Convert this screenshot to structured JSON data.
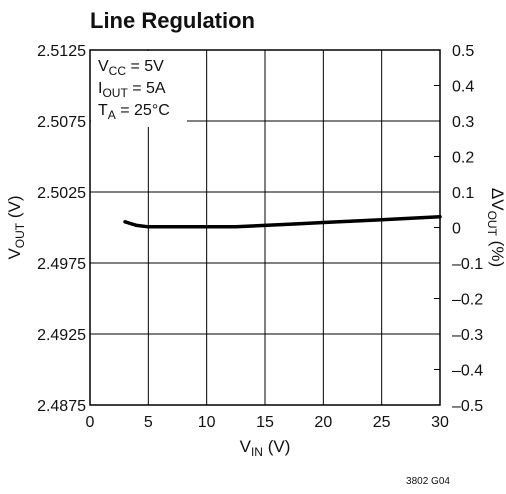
{
  "chart_data": {
    "type": "line",
    "title": "Line Regulation",
    "xlabel": {
      "main": "V",
      "sub": "IN",
      "unit": " (V)"
    },
    "ylabel_left": {
      "main": "V",
      "sub": "OUT",
      "unit": " (V)"
    },
    "ylabel_right": {
      "main": "ΔV",
      "sub": "OUT",
      "unit": " (%)"
    },
    "xlim": [
      0,
      30
    ],
    "ylim_left": [
      2.4875,
      2.5125
    ],
    "ylim_right": [
      -0.5,
      0.5
    ],
    "x_ticks": [
      "0",
      "5",
      "10",
      "15",
      "20",
      "25",
      "30"
    ],
    "y_ticks_left": [
      "2.5125",
      "2.5075",
      "2.5025",
      "2.4975",
      "2.4925",
      "2.4875"
    ],
    "y_ticks_right": [
      "0.5",
      "0.4",
      "0.3",
      "0.2",
      "0.1",
      "0",
      "–0.1",
      "–0.2",
      "–0.3",
      "–0.4",
      "–0.5"
    ],
    "grid": true,
    "legend": [
      {
        "main": "V",
        "sub": "CC",
        "rest": " = 5V"
      },
      {
        "main": "I",
        "sub": "OUT",
        "rest": " = 5A"
      },
      {
        "main": "T",
        "sub": "A",
        "rest": " = 25°C"
      }
    ],
    "series": [
      {
        "x": [
          3,
          4,
          5,
          6,
          8,
          10,
          12.5,
          15,
          17.5,
          20,
          22.5,
          25,
          27.5,
          30
        ],
        "y": [
          2.5004,
          2.50015,
          2.50005,
          2.50005,
          2.50005,
          2.50005,
          2.50005,
          2.50015,
          2.50025,
          2.50035,
          2.50045,
          2.50055,
          2.50065,
          2.50075
        ]
      }
    ],
    "figure_code": "3802 G04"
  }
}
